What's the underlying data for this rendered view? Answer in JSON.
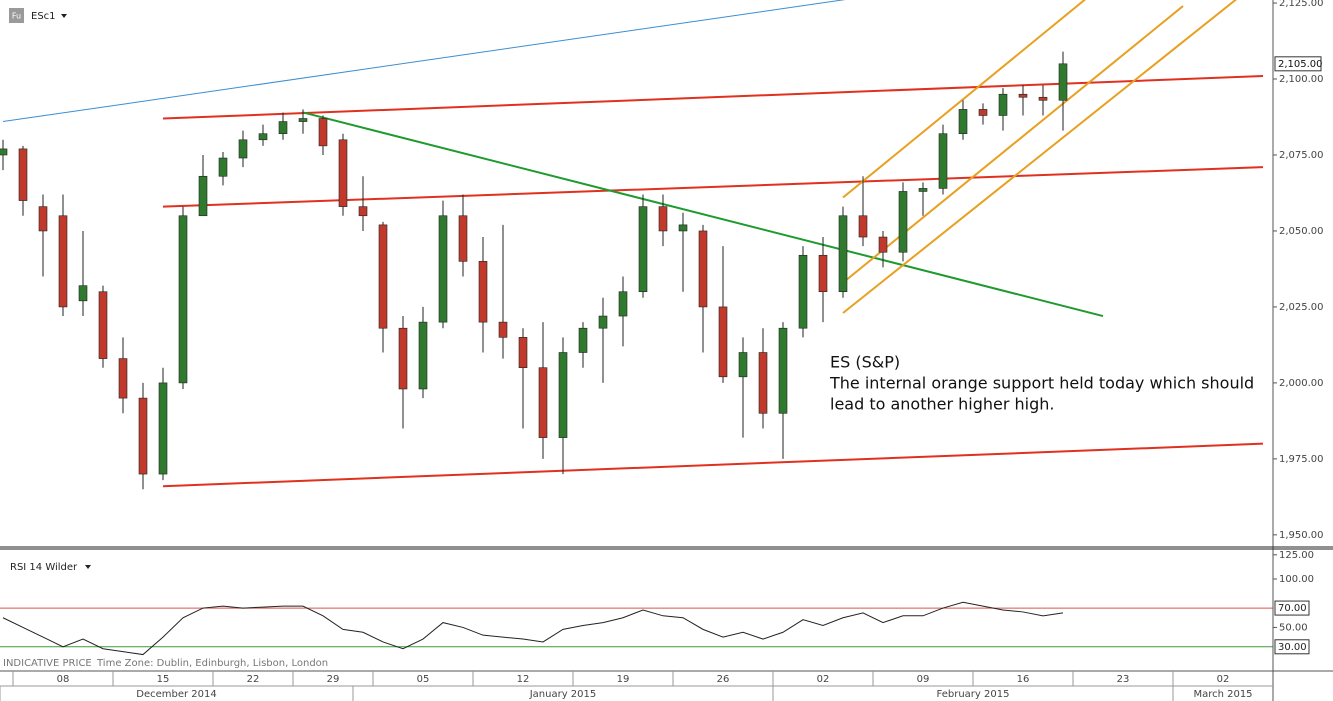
{
  "toolbar": {
    "icon": "Fu"
  },
  "footer": {
    "source": "INDICATIVE PRICE",
    "time_zone": "Time Zone: Dublin, Edinburgh, Lisbon, London"
  },
  "chart_data": [
    {
      "type": "candlestick",
      "title": "ESc1",
      "x": [
        "2014-12-05",
        "2014-12-08",
        "2014-12-09",
        "2014-12-10",
        "2014-12-11",
        "2014-12-12",
        "2014-12-15",
        "2014-12-16",
        "2014-12-17",
        "2014-12-18",
        "2014-12-19",
        "2014-12-22",
        "2014-12-23",
        "2014-12-24",
        "2014-12-26",
        "2014-12-29",
        "2014-12-30",
        "2014-12-31",
        "2015-01-02",
        "2015-01-05",
        "2015-01-06",
        "2015-01-07",
        "2015-01-08",
        "2015-01-09",
        "2015-01-12",
        "2015-01-13",
        "2015-01-14",
        "2015-01-15",
        "2015-01-16",
        "2015-01-19",
        "2015-01-20",
        "2015-01-21",
        "2015-01-22",
        "2015-01-23",
        "2015-01-26",
        "2015-01-27",
        "2015-01-28",
        "2015-01-29",
        "2015-01-30",
        "2015-02-02",
        "2015-02-03",
        "2015-02-04",
        "2015-02-05",
        "2015-02-06",
        "2015-02-09",
        "2015-02-10",
        "2015-02-11",
        "2015-02-12",
        "2015-02-13",
        "2015-02-16",
        "2015-02-17",
        "2015-02-18",
        "2015-02-19",
        "2015-02-20"
      ],
      "open": [
        2075,
        2077,
        2058,
        2055,
        2027,
        2030,
        2008,
        1995,
        1970,
        2000,
        2055,
        2068,
        2074,
        2080,
        2082,
        2086,
        2087,
        2080,
        2058,
        2052,
        2018,
        1998,
        2020,
        2055,
        2040,
        2020,
        2015,
        2005,
        1982,
        2010,
        2018,
        2022,
        2030,
        2058,
        2050,
        2050,
        2025,
        2002,
        2010,
        1990,
        2018,
        2042,
        2030,
        2055,
        2048,
        2043,
        2063,
        2064,
        2082,
        2090,
        2088,
        2095,
        2094,
        2093
      ],
      "high": [
        2080,
        2078,
        2062,
        2062,
        2050,
        2032,
        2015,
        2000,
        2005,
        2058,
        2075,
        2076,
        2083,
        2085,
        2089,
        2090,
        2088,
        2082,
        2068,
        2053,
        2022,
        2025,
        2060,
        2062,
        2048,
        2052,
        2018,
        2020,
        2015,
        2020,
        2028,
        2035,
        2062,
        2062,
        2056,
        2052,
        2045,
        2015,
        2018,
        2020,
        2045,
        2048,
        2058,
        2068,
        2050,
        2066,
        2066,
        2085,
        2093,
        2092,
        2097,
        2098,
        2098,
        2109
      ],
      "low": [
        2070,
        2055,
        2035,
        2022,
        2022,
        2005,
        1990,
        1965,
        1968,
        1998,
        2055,
        2065,
        2071,
        2078,
        2080,
        2082,
        2075,
        2055,
        2050,
        2010,
        1985,
        1995,
        2018,
        2035,
        2010,
        2008,
        1985,
        1975,
        1970,
        2005,
        2000,
        2012,
        2028,
        2045,
        2030,
        2010,
        2000,
        1982,
        1985,
        1975,
        2015,
        2020,
        2028,
        2045,
        2038,
        2040,
        2055,
        2062,
        2080,
        2085,
        2083,
        2088,
        2088,
        2083
      ],
      "close": [
        2077,
        2060,
        2050,
        2025,
        2032,
        2008,
        1995,
        1970,
        2000,
        2055,
        2068,
        2074,
        2080,
        2082,
        2086,
        2087,
        2078,
        2058,
        2055,
        2018,
        1998,
        2020,
        2055,
        2040,
        2020,
        2015,
        2005,
        1982,
        2010,
        2018,
        2022,
        2030,
        2058,
        2050,
        2052,
        2025,
        2002,
        2010,
        1990,
        2018,
        2042,
        2030,
        2055,
        2048,
        2043,
        2063,
        2064,
        2082,
        2090,
        2088,
        2095,
        2094,
        2093,
        2105
      ],
      "up_color": "#2f7a2f",
      "down_color": "#c0392b",
      "wick_color": "#222222",
      "ylim": [
        1946,
        2126
      ],
      "yticks": [
        {
          "value": 2125,
          "label": "2,125.00"
        },
        {
          "value": 2100,
          "label": "2,100.00"
        },
        {
          "value": 2075,
          "label": "2,075.00"
        },
        {
          "value": 2050,
          "label": "2,050.00"
        },
        {
          "value": 2025,
          "label": "2,025.00"
        },
        {
          "value": 2000,
          "label": "2,000.00"
        },
        {
          "value": 1975,
          "label": "1,975.00"
        },
        {
          "value": 1950,
          "label": "1,950.00"
        }
      ],
      "last_price": {
        "value": 2105,
        "label": "2,105.00"
      },
      "xticks": [
        {
          "value": "2014-12-08",
          "label": "08"
        },
        {
          "value": "2014-12-15",
          "label": "15"
        },
        {
          "value": "2014-12-22",
          "label": "22"
        },
        {
          "value": "2014-12-29",
          "label": "29"
        },
        {
          "value": "2015-01-05",
          "label": "05"
        },
        {
          "value": "2015-01-12",
          "label": "12"
        },
        {
          "value": "2015-01-19",
          "label": "19"
        },
        {
          "value": "2015-01-26",
          "label": "26"
        },
        {
          "value": "2015-02-02",
          "label": "02"
        },
        {
          "value": "2015-02-09",
          "label": "09"
        },
        {
          "value": "2015-02-16",
          "label": "16"
        },
        {
          "value": "2015-02-23",
          "label": "23"
        },
        {
          "value": "2015-03-02",
          "label": "02"
        }
      ],
      "month_ticks": [
        {
          "value": "2014-12",
          "label": "December 2014"
        },
        {
          "value": "2015-01",
          "label": "January 2015"
        },
        {
          "value": "2015-02",
          "label": "February 2015"
        },
        {
          "value": "2015-03",
          "label": "March 2015"
        }
      ],
      "trendlines": [
        {
          "color": "#3b8ed0",
          "x": [
            "2014-12-05",
            "2015-02-06"
          ],
          "y": [
            2086,
            2127
          ]
        },
        {
          "color": "#e0301e",
          "x": [
            "2014-12-17",
            "2015-03-06"
          ],
          "y": [
            2087,
            2101
          ]
        },
        {
          "color": "#e0301e",
          "x": [
            "2014-12-17",
            "2015-03-06"
          ],
          "y": [
            2058,
            2071
          ]
        },
        {
          "color": "#e0301e",
          "x": [
            "2014-12-17",
            "2015-03-06"
          ],
          "y": [
            1966,
            1980
          ]
        },
        {
          "color": "#1e9a2e",
          "x": [
            "2014-12-29",
            "2015-02-24"
          ],
          "y": [
            2089,
            2022
          ]
        },
        {
          "color": "#e8a020",
          "x": [
            "2015-02-05",
            "2015-02-24"
          ],
          "y": [
            2061,
            2131
          ]
        },
        {
          "color": "#e8a020",
          "x": [
            "2015-02-05",
            "2015-03-02"
          ],
          "y": [
            2033,
            2124
          ]
        },
        {
          "color": "#e8a020",
          "x": [
            "2015-02-05",
            "2015-03-05"
          ],
          "y": [
            2023,
            2128
          ]
        }
      ],
      "annotation": {
        "title": "ES (S&P)",
        "lines": [
          "The internal orange support held today which should",
          "lead to another higher high."
        ]
      }
    },
    {
      "type": "line",
      "title": "RSI 14 Wilder",
      "color": "#222222",
      "values": [
        60,
        50,
        40,
        30,
        38,
        28,
        25,
        22,
        40,
        60,
        70,
        72,
        70,
        71,
        72,
        72,
        62,
        48,
        45,
        35,
        28,
        38,
        55,
        50,
        42,
        40,
        38,
        35,
        48,
        52,
        55,
        60,
        68,
        62,
        60,
        48,
        40,
        45,
        38,
        45,
        58,
        52,
        60,
        65,
        55,
        62,
        62,
        70,
        76,
        72,
        68,
        66,
        62,
        65
      ],
      "ylim": [
        5,
        131
      ],
      "yticks": [
        {
          "value": 125,
          "label": "125.00"
        },
        {
          "value": 100,
          "label": "100.00"
        },
        {
          "value": 50,
          "label": "50.00"
        }
      ],
      "reference_lines": [
        {
          "value": 70,
          "label": "70.00",
          "color": "#d9534f"
        },
        {
          "value": 30,
          "label": "30.00",
          "color": "#3a9a3a"
        }
      ]
    }
  ]
}
